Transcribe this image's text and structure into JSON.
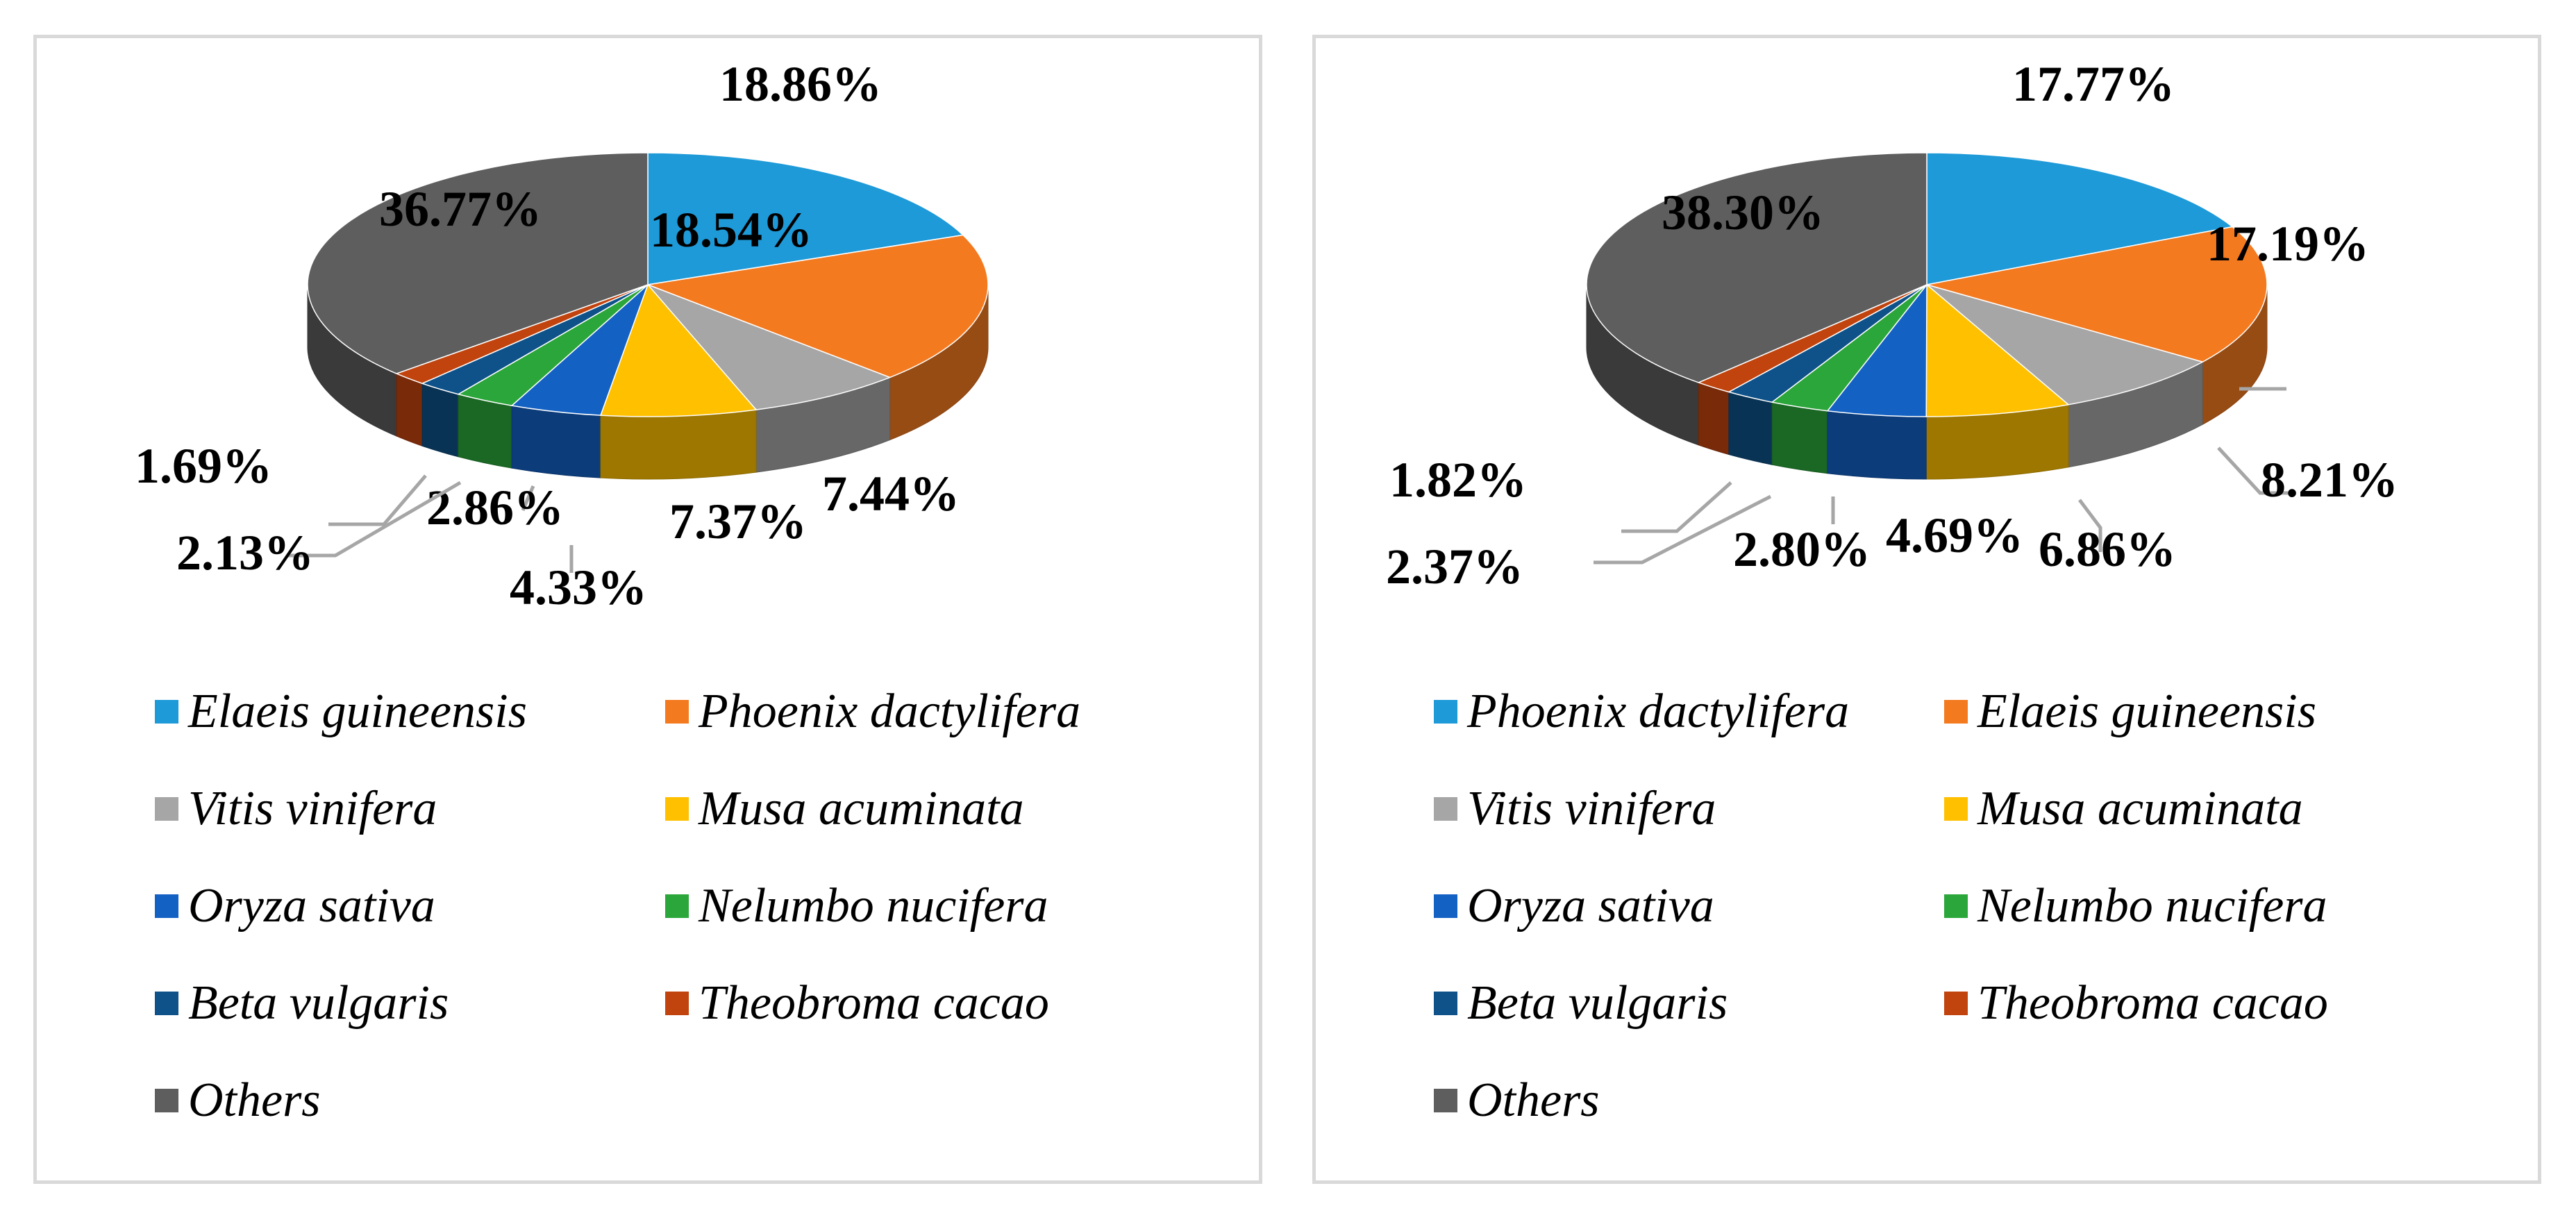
{
  "colors": {
    "c1": "#1e9ad8",
    "c2": "#f47a20",
    "c3": "#a6a6a6",
    "c4": "#ffc000",
    "c5": "#1461c4",
    "c6": "#2ba63a",
    "c7": "#0e5289",
    "c8": "#c1440e",
    "c9": "#5e5e5e"
  },
  "chart_data": [
    {
      "type": "pie",
      "style": "3d-exploded-none",
      "slices": [
        {
          "label": "Elaeis guineensis",
          "value": 18.86,
          "value_label": "18.86%",
          "color": "#1e9ad8"
        },
        {
          "label": "Phoenix dactylifera",
          "value": 18.54,
          "value_label": "18.54%",
          "color": "#f47a20"
        },
        {
          "label": "Vitis vinifera",
          "value": 7.44,
          "value_label": "7.44%",
          "color": "#a6a6a6"
        },
        {
          "label": "Musa acuminata",
          "value": 7.37,
          "value_label": "7.37%",
          "color": "#ffc000"
        },
        {
          "label": "Oryza sativa",
          "value": 4.33,
          "value_label": "4.33%",
          "color": "#1461c4"
        },
        {
          "label": "Nelumbo nucifera",
          "value": 2.86,
          "value_label": "2.86%",
          "color": "#2ba63a"
        },
        {
          "label": "Beta vulgaris",
          "value": 2.13,
          "value_label": "2.13%",
          "color": "#0e5289"
        },
        {
          "label": "Theobroma cacao",
          "value": 1.69,
          "value_label": "1.69%",
          "color": "#c1440e"
        },
        {
          "label": "Others",
          "value": 36.77,
          "value_label": "36.77%",
          "color": "#5e5e5e"
        }
      ],
      "legend": [
        "Elaeis guineensis",
        "Phoenix dactylifera",
        "Vitis vinifera",
        "Musa acuminata",
        "Oryza sativa",
        "Nelumbo nucifera",
        "Beta vulgaris",
        "Theobroma cacao",
        "Others"
      ],
      "legend_placement": "bottom"
    },
    {
      "type": "pie",
      "style": "3d-exploded-none",
      "slices": [
        {
          "label": "Phoenix dactylifera",
          "value": 17.77,
          "value_label": "17.77%",
          "color": "#1e9ad8"
        },
        {
          "label": "Elaeis guineensis",
          "value": 17.19,
          "value_label": "17.19%",
          "color": "#f47a20"
        },
        {
          "label": "Vitis vinifera",
          "value": 8.21,
          "value_label": "8.21%",
          "color": "#a6a6a6"
        },
        {
          "label": "Musa acuminata",
          "value": 6.86,
          "value_label": "6.86%",
          "color": "#ffc000"
        },
        {
          "label": "Oryza sativa",
          "value": 4.69,
          "value_label": "4.69%",
          "color": "#1461c4"
        },
        {
          "label": "Nelumbo nucifera",
          "value": 2.8,
          "value_label": "2.80%",
          "color": "#2ba63a"
        },
        {
          "label": "Beta vulgaris",
          "value": 2.37,
          "value_label": "2.37%",
          "color": "#0e5289"
        },
        {
          "label": "Theobroma cacao",
          "value": 1.82,
          "value_label": "1.82%",
          "color": "#c1440e"
        },
        {
          "label": "Others",
          "value": 38.3,
          "value_label": "38.30%",
          "color": "#5e5e5e"
        }
      ],
      "legend": [
        "Phoenix dactylifera",
        "Elaeis guineensis",
        "Vitis vinifera",
        "Musa acuminata",
        "Oryza sativa",
        "Nelumbo nucifera",
        "Beta vulgaris",
        "Theobroma cacao",
        "Others"
      ],
      "legend_placement": "bottom"
    }
  ]
}
